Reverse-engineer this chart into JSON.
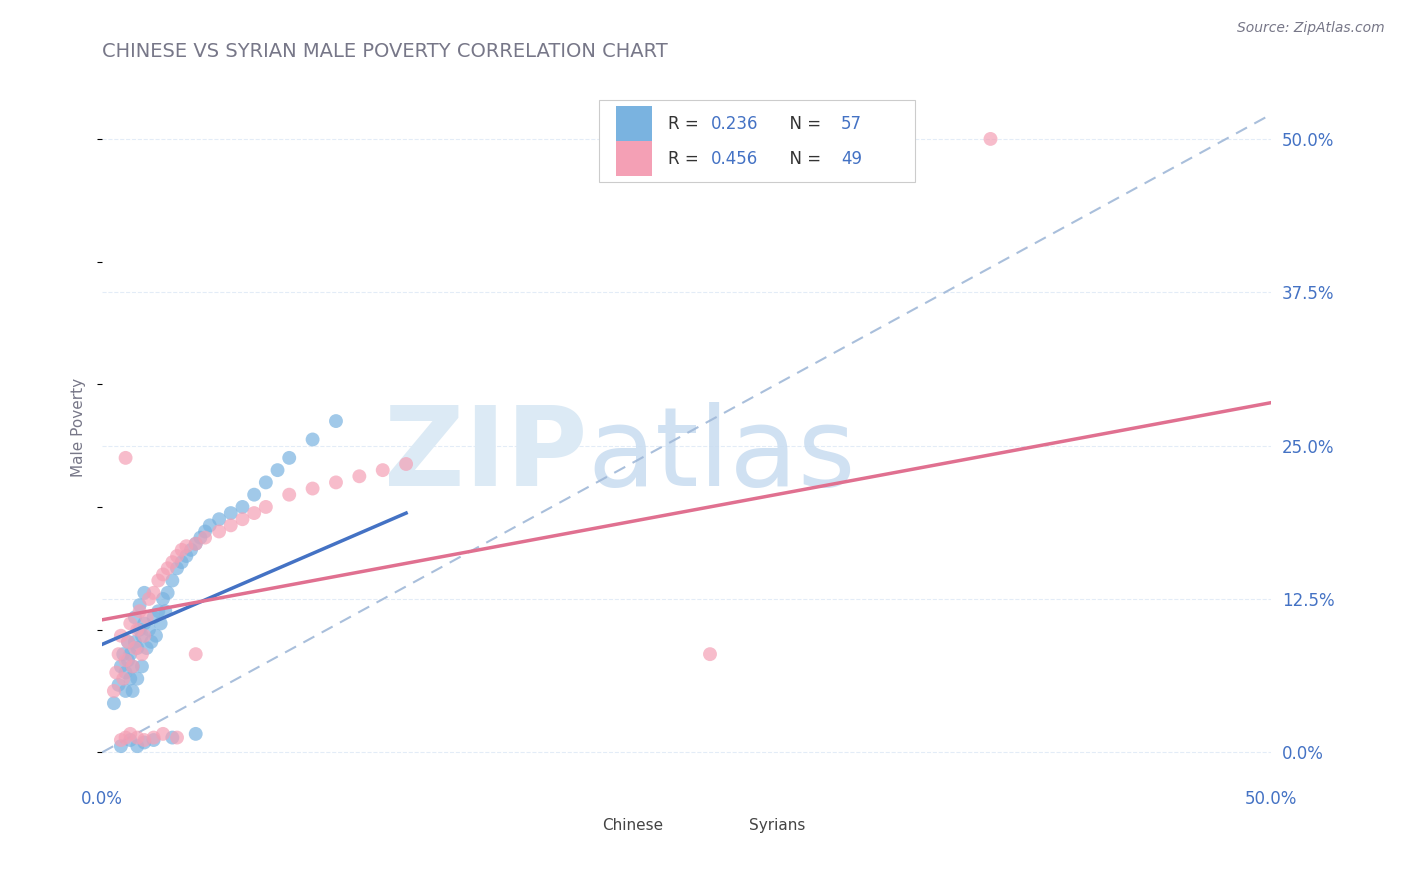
{
  "title": "CHINESE VS SYRIAN MALE POVERTY CORRELATION CHART",
  "source": "Source: ZipAtlas.com",
  "ylabel": "Male Poverty",
  "ytick_labels": [
    "0.0%",
    "12.5%",
    "25.0%",
    "37.5%",
    "50.0%"
  ],
  "ytick_values": [
    0.0,
    0.125,
    0.25,
    0.375,
    0.5
  ],
  "xlim": [
    0.0,
    0.5
  ],
  "ylim": [
    -0.02,
    0.55
  ],
  "legend_chinese_R": "0.236",
  "legend_chinese_N": "57",
  "legend_syrian_R": "0.456",
  "legend_syrian_N": "49",
  "chinese_color": "#7ab3e0",
  "syrian_color": "#f4a0b5",
  "chinese_line_color": "#4472c4",
  "syrian_line_color": "#e07090",
  "dashed_line_color": "#a0b8d8",
  "background_color": "#ffffff",
  "grid_color": "#dde8f5",
  "chinese_x": [
    0.005,
    0.007,
    0.008,
    0.009,
    0.01,
    0.01,
    0.011,
    0.011,
    0.012,
    0.012,
    0.013,
    0.013,
    0.014,
    0.014,
    0.015,
    0.015,
    0.016,
    0.016,
    0.017,
    0.017,
    0.018,
    0.018,
    0.019,
    0.02,
    0.021,
    0.022,
    0.023,
    0.024,
    0.025,
    0.026,
    0.027,
    0.028,
    0.03,
    0.032,
    0.034,
    0.036,
    0.038,
    0.04,
    0.042,
    0.044,
    0.046,
    0.05,
    0.055,
    0.06,
    0.065,
    0.07,
    0.075,
    0.08,
    0.09,
    0.1,
    0.008,
    0.012,
    0.015,
    0.018,
    0.022,
    0.03,
    0.04
  ],
  "chinese_y": [
    0.04,
    0.055,
    0.07,
    0.08,
    0.05,
    0.065,
    0.075,
    0.09,
    0.06,
    0.08,
    0.05,
    0.07,
    0.09,
    0.11,
    0.06,
    0.085,
    0.1,
    0.12,
    0.07,
    0.095,
    0.105,
    0.13,
    0.085,
    0.1,
    0.09,
    0.11,
    0.095,
    0.115,
    0.105,
    0.125,
    0.115,
    0.13,
    0.14,
    0.15,
    0.155,
    0.16,
    0.165,
    0.17,
    0.175,
    0.18,
    0.185,
    0.19,
    0.195,
    0.2,
    0.21,
    0.22,
    0.23,
    0.24,
    0.255,
    0.27,
    0.005,
    0.01,
    0.005,
    0.008,
    0.01,
    0.012,
    0.015
  ],
  "syrian_x": [
    0.005,
    0.006,
    0.007,
    0.008,
    0.009,
    0.01,
    0.011,
    0.012,
    0.013,
    0.014,
    0.015,
    0.016,
    0.017,
    0.018,
    0.019,
    0.02,
    0.022,
    0.024,
    0.026,
    0.028,
    0.03,
    0.032,
    0.034,
    0.036,
    0.04,
    0.044,
    0.05,
    0.055,
    0.06,
    0.065,
    0.07,
    0.08,
    0.09,
    0.1,
    0.11,
    0.12,
    0.13,
    0.008,
    0.01,
    0.012,
    0.015,
    0.018,
    0.022,
    0.026,
    0.032,
    0.26,
    0.38,
    0.01,
    0.04
  ],
  "syrian_y": [
    0.05,
    0.065,
    0.08,
    0.095,
    0.06,
    0.075,
    0.09,
    0.105,
    0.07,
    0.085,
    0.1,
    0.115,
    0.08,
    0.095,
    0.11,
    0.125,
    0.13,
    0.14,
    0.145,
    0.15,
    0.155,
    0.16,
    0.165,
    0.168,
    0.17,
    0.175,
    0.18,
    0.185,
    0.19,
    0.195,
    0.2,
    0.21,
    0.215,
    0.22,
    0.225,
    0.23,
    0.235,
    0.01,
    0.012,
    0.015,
    0.012,
    0.01,
    0.012,
    0.015,
    0.012,
    0.08,
    0.5,
    0.24,
    0.08
  ],
  "blue_line_x0": 0.0,
  "blue_line_y0": 0.088,
  "blue_line_x1": 0.13,
  "blue_line_y1": 0.195,
  "pink_line_x0": 0.0,
  "pink_line_y0": 0.108,
  "pink_line_x1": 0.5,
  "pink_line_y1": 0.285,
  "dash_line_x0": 0.0,
  "dash_line_y0": 0.0,
  "dash_line_x1": 0.5,
  "dash_line_y1": 0.52
}
